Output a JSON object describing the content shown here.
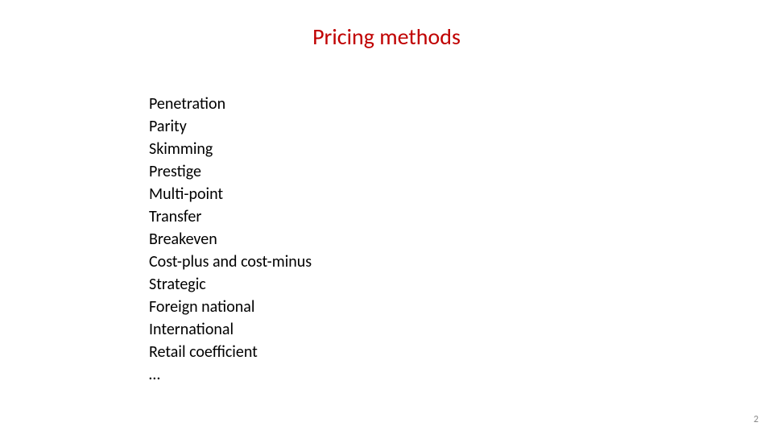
{
  "slide": {
    "title": "Pricing methods",
    "title_color": "#c00000",
    "title_fontsize": 28,
    "background_color": "#ffffff",
    "body_color": "#000000",
    "body_fontsize": 20,
    "items": [
      "Penetration",
      "Parity",
      "Skimming",
      "Prestige",
      "Multi-point",
      "Transfer",
      "Breakeven",
      "Cost-plus and cost-minus",
      "Strategic",
      "Foreign national",
      "International",
      "Retail coefficient",
      "…"
    ],
    "page_number": "2",
    "page_number_color": "#898989",
    "page_number_fontsize": 12
  }
}
